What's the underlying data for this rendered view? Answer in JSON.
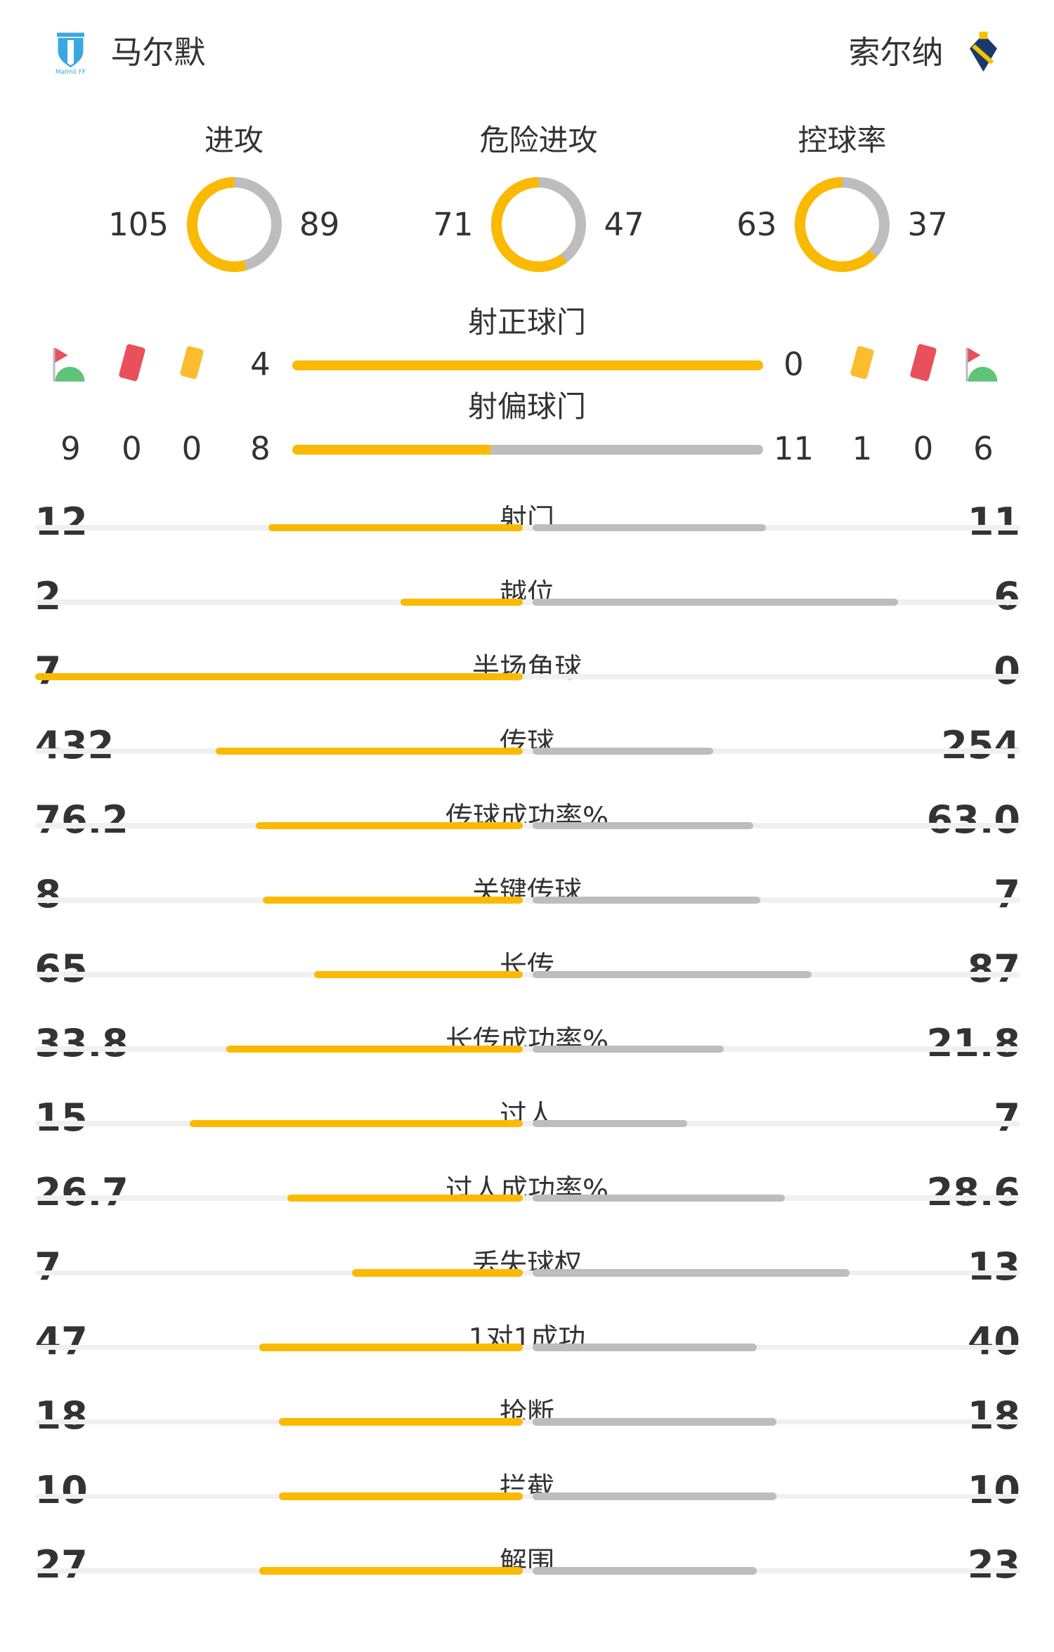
{
  "home": {
    "name": "马尔默",
    "logo": "malmo-ff-crest"
  },
  "away": {
    "name": "索尔纳",
    "logo": "aik-crest"
  },
  "colors": {
    "home": "#fbb900",
    "away": "#bdbdbd",
    "track": "#f0f0f0",
    "red_card": "#e8505b",
    "yellow_card": "#fbbd2d",
    "corner": "#5fc37a"
  },
  "donuts": [
    {
      "title": "进攻",
      "home": 105,
      "away": 89
    },
    {
      "title": "危险进攻",
      "home": 71,
      "away": 47
    },
    {
      "title": "控球率",
      "home": 63,
      "away": 37
    }
  ],
  "shots_on": {
    "title": "射正球门",
    "home": 4,
    "away": 0
  },
  "shots_off": {
    "title": "射偏球门",
    "home": 8,
    "away": 11
  },
  "icons": [
    "corner-flag-icon",
    "red-card-icon",
    "yellow-card-icon"
  ],
  "home_counts": {
    "corners": 9,
    "red": 0,
    "yellow": 0
  },
  "away_counts": {
    "yellow": 1,
    "red": 0,
    "corners": 6
  },
  "stats": [
    {
      "label": "射门",
      "home": "12",
      "away": "11"
    },
    {
      "label": "越位",
      "home": "2",
      "away": "6"
    },
    {
      "label": "半场角球",
      "home": "7",
      "away": "0"
    },
    {
      "label": "传球",
      "home": "432",
      "away": "254"
    },
    {
      "label": "传球成功率%",
      "home": "76.2",
      "away": "63.0"
    },
    {
      "label": "关键传球",
      "home": "8",
      "away": "7"
    },
    {
      "label": "长传",
      "home": "65",
      "away": "87"
    },
    {
      "label": "长传成功率%",
      "home": "33.8",
      "away": "21.8"
    },
    {
      "label": "过人",
      "home": "15",
      "away": "7"
    },
    {
      "label": "过人成功率%",
      "home": "26.7",
      "away": "28.6"
    },
    {
      "label": "丢失球权",
      "home": "7",
      "away": "13"
    },
    {
      "label": "1对1成功",
      "home": "47",
      "away": "40"
    },
    {
      "label": "抢断",
      "home": "18",
      "away": "18"
    },
    {
      "label": "拦截",
      "home": "10",
      "away": "10"
    },
    {
      "label": "解围",
      "home": "27",
      "away": "23"
    }
  ]
}
